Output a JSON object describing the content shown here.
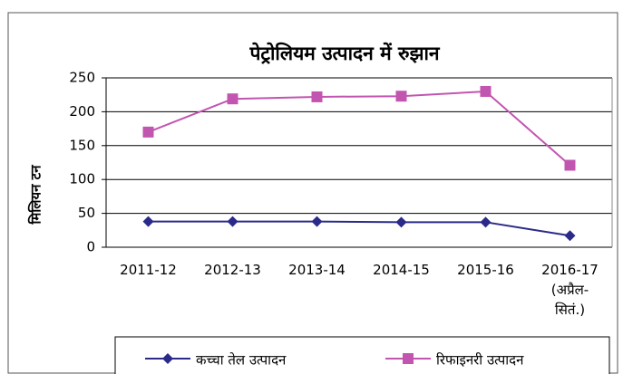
{
  "chart_data": {
    "type": "line",
    "title": "पेट्रोलियम उत्पादन में रुझान",
    "y_label": "मिलियन टन",
    "categories": [
      "2011-12",
      "2012-13",
      "2013-14",
      "2014-15",
      "2015-16",
      "2016-17\n(अप्रैल-\nसितं.)"
    ],
    "series": [
      {
        "name": "कच्चा तेल उत्पादन",
        "color": "#2a2a8a",
        "marker": "diamond",
        "values": [
          38,
          38,
          38,
          37,
          37,
          17
        ]
      },
      {
        "name": "रिफाइनरी उत्पादन",
        "color": "#c255b0",
        "marker": "square",
        "values": [
          170,
          219,
          222,
          223,
          230,
          121
        ]
      }
    ],
    "ylim": [
      0,
      250
    ],
    "yticks": [
      0,
      50,
      100,
      150,
      200,
      250
    ],
    "grid": true,
    "legend": "bottom"
  }
}
